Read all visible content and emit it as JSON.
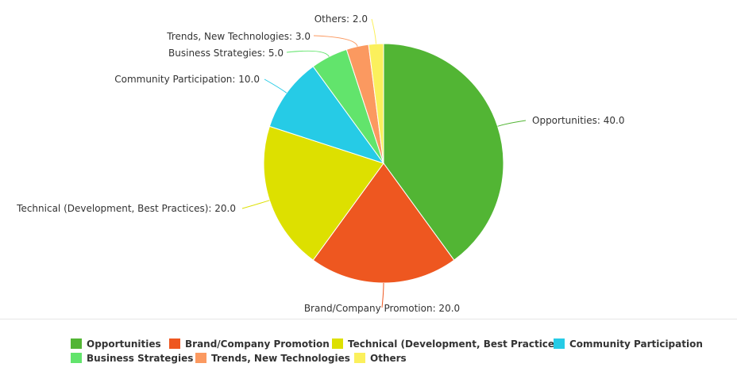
{
  "chart_data": {
    "type": "pie",
    "title": "",
    "categories": [
      "Opportunities",
      "Brand/Company Promotion",
      "Technical (Development, Best Practices)",
      "Community Participation",
      "Business Strategies",
      "Trends, New Technologies",
      "Others"
    ],
    "values": [
      40.0,
      20.0,
      20.0,
      10.0,
      5.0,
      3.0,
      2.0
    ],
    "data_labels": [
      "Opportunities: 40.0",
      "Brand/Company Promotion: 20.0",
      "Technical (Development, Best Practices): 20.0",
      "Community Participation: 10.0",
      "Business Strategies: 5.0",
      "Trends, New Technologies: 3.0",
      "Others: 2.0"
    ],
    "colors": [
      "#52b534",
      "#ee5720",
      "#dde000",
      "#26cbe6",
      "#62e46c",
      "#fb9960",
      "#fbf05c"
    ],
    "legend_position": "bottom"
  }
}
